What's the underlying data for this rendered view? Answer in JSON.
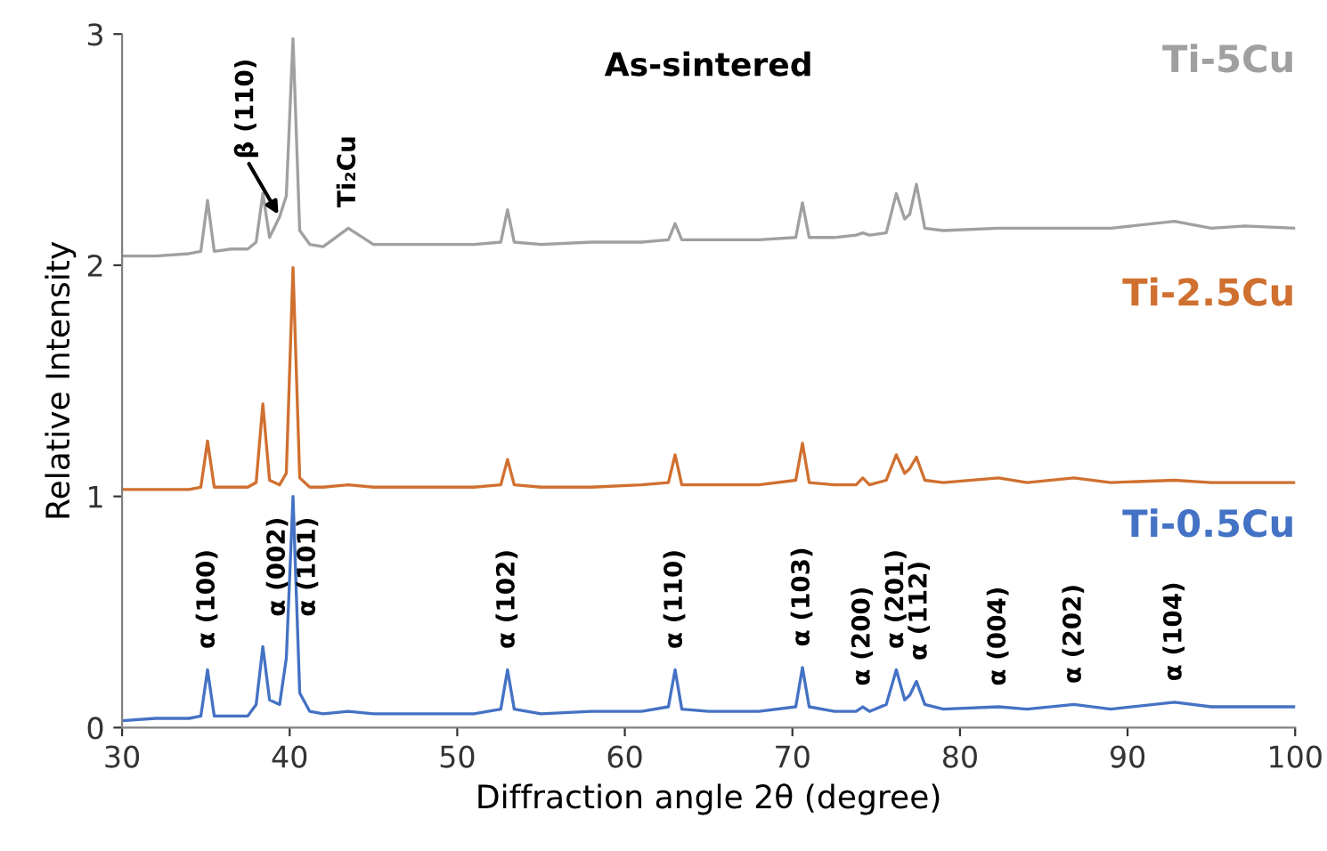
{
  "chart_data": {
    "type": "line",
    "title": "As-sintered",
    "xlabel": "Diffraction angle 2θ (degree)",
    "ylabel": "Relative Intensity",
    "xlim": [
      30,
      100
    ],
    "xticks": [
      30,
      40,
      50,
      60,
      70,
      80,
      90,
      100
    ],
    "ylim": [
      0,
      3
    ],
    "yticks": [
      0,
      1,
      2,
      3
    ],
    "grid": false,
    "legend": false,
    "marker": "none",
    "line_style": "solid",
    "x": [
      30,
      32,
      34,
      34.7,
      35.1,
      35.5,
      36.5,
      37.5,
      38.0,
      38.4,
      38.8,
      39.4,
      39.8,
      40.2,
      40.6,
      41.2,
      42,
      43.5,
      45,
      48,
      51,
      52.6,
      53.0,
      53.4,
      55,
      58,
      61,
      62.6,
      63.0,
      63.4,
      65,
      68,
      70.2,
      70.6,
      71.0,
      72.5,
      73.8,
      74.2,
      74.6,
      75.6,
      76.2,
      76.7,
      77.0,
      77.4,
      77.9,
      79,
      82.3,
      84,
      86.8,
      89,
      92.8,
      95,
      97,
      100
    ],
    "series": [
      {
        "name": "Ti-5Cu",
        "color": "#a0a0a0",
        "values": [
          2.04,
          2.04,
          2.05,
          2.06,
          2.28,
          2.06,
          2.07,
          2.07,
          2.1,
          2.31,
          2.12,
          2.21,
          2.3,
          2.98,
          2.15,
          2.09,
          2.08,
          2.16,
          2.09,
          2.09,
          2.09,
          2.1,
          2.24,
          2.1,
          2.09,
          2.1,
          2.1,
          2.11,
          2.18,
          2.11,
          2.11,
          2.11,
          2.12,
          2.27,
          2.12,
          2.12,
          2.13,
          2.14,
          2.13,
          2.14,
          2.31,
          2.2,
          2.22,
          2.35,
          2.16,
          2.15,
          2.16,
          2.16,
          2.16,
          2.16,
          2.19,
          2.16,
          2.17,
          2.16
        ]
      },
      {
        "name": "Ti-2.5Cu",
        "color": "#d07030",
        "values": [
          1.03,
          1.03,
          1.03,
          1.04,
          1.24,
          1.04,
          1.04,
          1.04,
          1.06,
          1.4,
          1.07,
          1.05,
          1.1,
          1.99,
          1.08,
          1.04,
          1.04,
          1.05,
          1.04,
          1.04,
          1.04,
          1.05,
          1.16,
          1.05,
          1.04,
          1.04,
          1.05,
          1.06,
          1.18,
          1.05,
          1.05,
          1.05,
          1.07,
          1.23,
          1.06,
          1.05,
          1.05,
          1.08,
          1.05,
          1.07,
          1.18,
          1.1,
          1.12,
          1.17,
          1.07,
          1.06,
          1.08,
          1.06,
          1.08,
          1.06,
          1.07,
          1.06,
          1.06,
          1.06
        ]
      },
      {
        "name": "Ti-0.5Cu",
        "color": "#4472c4",
        "values": [
          0.03,
          0.04,
          0.04,
          0.05,
          0.25,
          0.05,
          0.05,
          0.05,
          0.1,
          0.35,
          0.12,
          0.1,
          0.3,
          1.0,
          0.15,
          0.07,
          0.06,
          0.07,
          0.06,
          0.06,
          0.06,
          0.08,
          0.25,
          0.08,
          0.06,
          0.07,
          0.07,
          0.09,
          0.25,
          0.08,
          0.07,
          0.07,
          0.09,
          0.26,
          0.09,
          0.07,
          0.07,
          0.09,
          0.07,
          0.1,
          0.25,
          0.12,
          0.14,
          0.2,
          0.1,
          0.08,
          0.09,
          0.08,
          0.1,
          0.08,
          0.11,
          0.09,
          0.09,
          0.09
        ]
      }
    ],
    "annotations": [
      {
        "text": "β (110)",
        "x": 39.4,
        "y": 2.21
      },
      {
        "text": "Ti₂Cu",
        "x": 43.5,
        "y": 2.16
      },
      {
        "text": "α (100)",
        "x": 35.1,
        "y": 0.25
      },
      {
        "text": "α (002)",
        "x": 38.4,
        "y": 0.35
      },
      {
        "text": "α (101)",
        "x": 40.2,
        "y": 1.0
      },
      {
        "text": "α (102)",
        "x": 53.0,
        "y": 0.25
      },
      {
        "text": "α (110)",
        "x": 63.0,
        "y": 0.25
      },
      {
        "text": "α (103)",
        "x": 70.6,
        "y": 0.26
      },
      {
        "text": "α (200)",
        "x": 74.2,
        "y": 0.09
      },
      {
        "text": "α (201)",
        "x": 76.2,
        "y": 0.25
      },
      {
        "text": "α (112)",
        "x": 77.4,
        "y": 0.2
      },
      {
        "text": "α (004)",
        "x": 82.3,
        "y": 0.09
      },
      {
        "text": "α (202)",
        "x": 86.8,
        "y": 0.1
      },
      {
        "text": "α (104)",
        "x": 92.8,
        "y": 0.11
      }
    ]
  }
}
